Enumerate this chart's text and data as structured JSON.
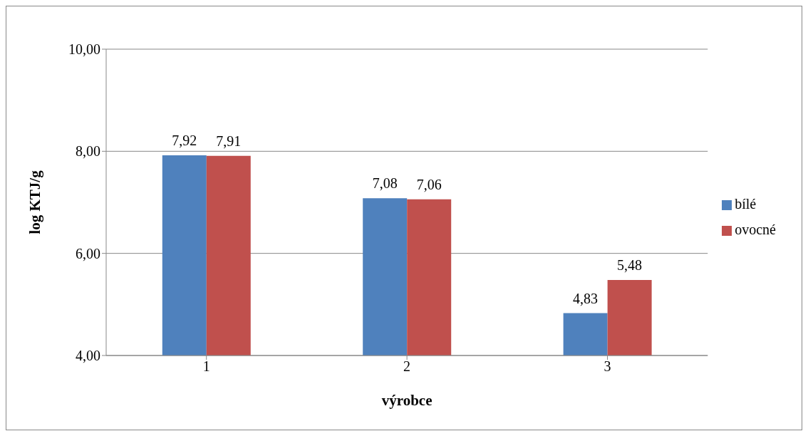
{
  "chart_data": {
    "type": "bar",
    "xlabel": "výrobce",
    "ylabel": "log KTJ/g",
    "categories": [
      "1",
      "2",
      "3"
    ],
    "series": [
      {
        "name": "bílé",
        "color": "#4f81bd",
        "values": [
          7.92,
          7.08,
          4.83
        ],
        "value_labels": [
          "7,92",
          "7,08",
          "4,83"
        ]
      },
      {
        "name": "ovocné",
        "color": "#c0504d",
        "values": [
          7.91,
          7.06,
          5.48
        ],
        "value_labels": [
          "7,91",
          "7,06",
          "5,48"
        ]
      }
    ],
    "ylim": [
      4,
      10
    ],
    "yticks": [
      {
        "value": 4,
        "label": "4,00"
      },
      {
        "value": 6,
        "label": "6,00"
      },
      {
        "value": 8,
        "label": "8,00"
      },
      {
        "value": 10,
        "label": "10,00"
      }
    ],
    "grid": "y",
    "legend": "right"
  }
}
